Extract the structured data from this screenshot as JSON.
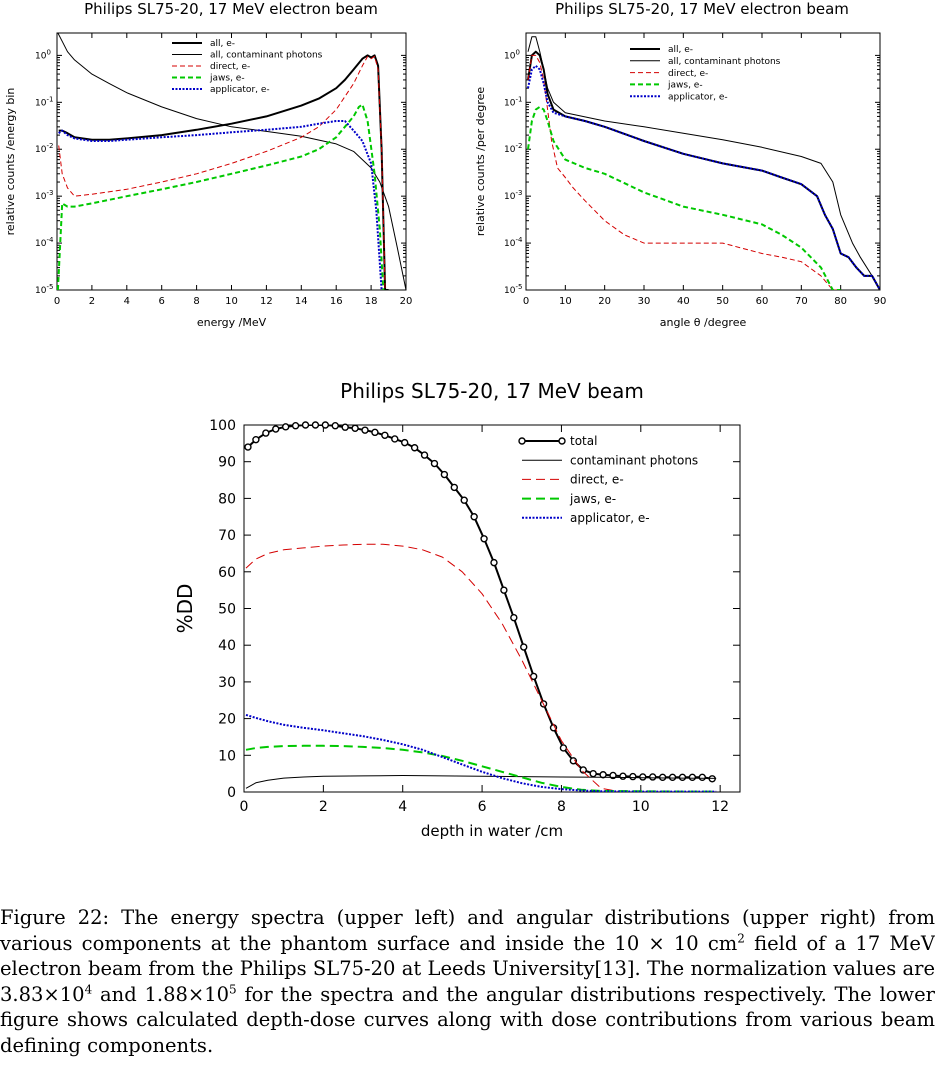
{
  "chart_data": [
    {
      "type": "line",
      "title": "Philips SL75-20, 17 MeV electron beam",
      "xlabel": "energy /MeV",
      "ylabel": "relative counts /energy bin",
      "xlim": [
        0,
        20
      ],
      "ylim": [
        1e-05,
        3
      ],
      "yscale": "log",
      "xticks": [
        "0",
        "2",
        "4",
        "6",
        "8",
        "10",
        "12",
        "14",
        "16",
        "18",
        "20"
      ],
      "yticks": [
        {
          "base": "10",
          "exp": "0",
          "value": 1
        },
        {
          "base": "10",
          "exp": "-1",
          "value": 0.1
        },
        {
          "base": "10",
          "exp": "-2",
          "value": 0.01
        },
        {
          "base": "10",
          "exp": "-3",
          "value": 0.001
        },
        {
          "base": "10",
          "exp": "-4",
          "value": 0.0001
        },
        {
          "base": "10",
          "exp": "-5",
          "value": 1e-05
        }
      ],
      "legend_position": "top-center",
      "series": [
        {
          "name": "all, e-",
          "color": "#000000",
          "style": "solid-thick",
          "x": [
            0.1,
            0.3,
            0.6,
            1,
            2,
            3,
            4,
            6,
            8,
            10,
            12,
            14,
            15,
            16,
            16.5,
            17,
            17.5,
            17.8,
            18,
            18.2,
            18.4,
            18.6,
            18.8,
            19
          ],
          "y": [
            0.025,
            0.025,
            0.022,
            0.018,
            0.016,
            0.016,
            0.017,
            0.02,
            0.026,
            0.035,
            0.05,
            0.085,
            0.12,
            0.2,
            0.3,
            0.5,
            0.85,
            1.0,
            0.9,
            1.0,
            0.6,
            0.01,
            1e-05,
            1e-05
          ]
        },
        {
          "name": "all, contaminant photons",
          "color": "#000000",
          "style": "solid-thin",
          "x": [
            0.05,
            0.3,
            0.6,
            1,
            2,
            3,
            4,
            6,
            8,
            10,
            12,
            14,
            16,
            17,
            18,
            18.5,
            19,
            19.5,
            20
          ],
          "y": [
            3,
            2,
            1.2,
            0.8,
            0.4,
            0.25,
            0.16,
            0.08,
            0.045,
            0.03,
            0.024,
            0.019,
            0.013,
            0.009,
            0.004,
            0.002,
            0.0006,
            8e-05,
            1e-05
          ]
        },
        {
          "name": "direct, e-",
          "color": "#d40000",
          "style": "dashed",
          "x": [
            0.1,
            0.3,
            0.6,
            1,
            2,
            4,
            6,
            8,
            10,
            12,
            14,
            15,
            16,
            17,
            17.5,
            17.8,
            18,
            18.2,
            18.4,
            18.6,
            18.8
          ],
          "y": [
            0.012,
            0.003,
            0.0015,
            0.001,
            0.0011,
            0.0014,
            0.002,
            0.003,
            0.005,
            0.009,
            0.018,
            0.03,
            0.07,
            0.25,
            0.6,
            0.95,
            0.85,
            0.95,
            0.5,
            0.01,
            1e-05
          ]
        },
        {
          "name": "jaws, e-",
          "color": "#00c800",
          "style": "dashed",
          "x": [
            0.05,
            0.3,
            0.6,
            1,
            2,
            4,
            6,
            8,
            10,
            12,
            14,
            15,
            16,
            16.5,
            17,
            17.3,
            17.5,
            17.8,
            18.2,
            18.5,
            18.7
          ],
          "y": [
            1e-05,
            0.0007,
            0.0006,
            0.0006,
            0.0007,
            0.001,
            0.0014,
            0.002,
            0.003,
            0.0045,
            0.007,
            0.01,
            0.018,
            0.03,
            0.05,
            0.08,
            0.09,
            0.04,
            0.003,
            0.0002,
            1e-05
          ]
        },
        {
          "name": "applicator, e-",
          "color": "#0000c8",
          "style": "dotted",
          "x": [
            0.1,
            0.3,
            0.6,
            1,
            2,
            3,
            4,
            6,
            8,
            10,
            12,
            14,
            15,
            16,
            16.5,
            17,
            17.5,
            18,
            18.3,
            18.6
          ],
          "y": [
            0.022,
            0.025,
            0.02,
            0.017,
            0.015,
            0.015,
            0.016,
            0.018,
            0.02,
            0.023,
            0.026,
            0.03,
            0.035,
            0.04,
            0.04,
            0.025,
            0.015,
            0.005,
            0.0005,
            1e-05
          ]
        }
      ]
    },
    {
      "type": "line",
      "title": "Philips SL75-20, 17 MeV electron beam",
      "xlabel": "angle θ /degree",
      "ylabel": "relative counts /per degree",
      "xlim": [
        0,
        90
      ],
      "ylim": [
        1e-05,
        3
      ],
      "yscale": "log",
      "xticks": [
        "0",
        "10",
        "20",
        "30",
        "40",
        "50",
        "60",
        "70",
        "80",
        "90"
      ],
      "yticks": [
        {
          "base": "10",
          "exp": "0",
          "value": 1
        },
        {
          "base": "10",
          "exp": "-1",
          "value": 0.1
        },
        {
          "base": "10",
          "exp": "-2",
          "value": 0.01
        },
        {
          "base": "10",
          "exp": "-3",
          "value": 0.001
        },
        {
          "base": "10",
          "exp": "-4",
          "value": 0.0001
        },
        {
          "base": "10",
          "exp": "-5",
          "value": 1e-05
        }
      ],
      "legend_position": "top-right",
      "series": [
        {
          "name": "all, e-",
          "color": "#000000",
          "style": "solid-thick",
          "x": [
            0.5,
            1.5,
            2.5,
            3.5,
            4.5,
            5.5,
            7,
            10,
            15,
            20,
            30,
            40,
            50,
            60,
            65,
            70,
            74,
            76,
            78,
            80,
            82,
            84,
            86,
            88,
            90
          ],
          "y": [
            0.3,
            1.0,
            1.2,
            1.0,
            0.5,
            0.15,
            0.07,
            0.05,
            0.04,
            0.03,
            0.015,
            0.008,
            0.005,
            0.0035,
            0.0025,
            0.0018,
            0.001,
            0.0004,
            0.0002,
            6e-05,
            5e-05,
            3e-05,
            2e-05,
            2e-05,
            1e-05
          ]
        },
        {
          "name": "all, contaminant photons",
          "color": "#000000",
          "style": "solid-thin",
          "x": [
            0.5,
            1.5,
            2.5,
            3.5,
            4.5,
            5.5,
            7,
            10,
            20,
            30,
            40,
            50,
            60,
            70,
            75,
            78,
            80,
            83,
            85,
            88,
            90
          ],
          "y": [
            1.2,
            2.5,
            2.5,
            1.2,
            0.5,
            0.2,
            0.1,
            0.06,
            0.04,
            0.03,
            0.022,
            0.016,
            0.011,
            0.007,
            0.005,
            0.002,
            0.0004,
            0.0001,
            5e-05,
            2e-05,
            1e-05
          ]
        },
        {
          "name": "direct, e-",
          "color": "#d40000",
          "style": "dashed",
          "x": [
            0.5,
            1.5,
            2.5,
            3.5,
            4.5,
            5.5,
            6.5,
            8,
            10,
            12,
            15,
            20,
            25,
            30,
            40,
            50,
            60,
            65,
            70,
            75,
            78,
            80
          ],
          "y": [
            0.3,
            1.0,
            1.0,
            0.7,
            0.3,
            0.07,
            0.015,
            0.004,
            0.0025,
            0.0015,
            0.0008,
            0.0003,
            0.00015,
            0.0001,
            0.0001,
            0.0001,
            6e-05,
            5e-05,
            4e-05,
            2e-05,
            1e-05,
            1e-05
          ]
        },
        {
          "name": "jaws, e-",
          "color": "#00c800",
          "style": "dashed",
          "x": [
            0.5,
            1.5,
            2.5,
            3.5,
            4.5,
            5.5,
            7,
            10,
            15,
            20,
            30,
            40,
            50,
            60,
            65,
            70,
            75,
            78,
            80
          ],
          "y": [
            0.01,
            0.04,
            0.07,
            0.08,
            0.07,
            0.04,
            0.015,
            0.006,
            0.004,
            0.003,
            0.0012,
            0.0006,
            0.0004,
            0.00025,
            0.00015,
            8e-05,
            3e-05,
            1e-05,
            1e-05
          ]
        },
        {
          "name": "applicator, e-",
          "color": "#0000c8",
          "style": "dotted",
          "x": [
            0.5,
            1.5,
            2.5,
            3.5,
            4.5,
            5.5,
            7,
            10,
            15,
            20,
            30,
            40,
            50,
            60,
            65,
            70,
            74,
            76,
            78,
            80,
            82,
            84,
            86,
            88,
            90
          ],
          "y": [
            0.2,
            0.5,
            0.6,
            0.5,
            0.25,
            0.1,
            0.06,
            0.05,
            0.04,
            0.03,
            0.015,
            0.008,
            0.005,
            0.0035,
            0.0025,
            0.0018,
            0.001,
            0.0004,
            0.0002,
            6e-05,
            5e-05,
            3e-05,
            2e-05,
            2e-05,
            1e-05
          ]
        }
      ]
    },
    {
      "type": "line",
      "title": "Philips SL75-20, 17 MeV beam",
      "xlabel": "depth in water /cm",
      "ylabel": "%DD",
      "xlim": [
        0,
        12.5
      ],
      "ylim": [
        0,
        100
      ],
      "xticks": [
        "0",
        "2",
        "4",
        "6",
        "8",
        "10",
        "12"
      ],
      "yticks": [
        "0",
        "10",
        "20",
        "30",
        "40",
        "50",
        "60",
        "70",
        "80",
        "90",
        "100"
      ],
      "legend_position": "top-right",
      "series": [
        {
          "name": "total",
          "color": "#000000",
          "style": "solid-markers",
          "x": [
            0.1,
            0.3,
            0.55,
            0.8,
            1.05,
            1.3,
            1.55,
            1.8,
            2.05,
            2.3,
            2.55,
            2.8,
            3.05,
            3.3,
            3.55,
            3.8,
            4.05,
            4.3,
            4.55,
            4.8,
            5.05,
            5.3,
            5.55,
            5.8,
            6.05,
            6.3,
            6.55,
            6.8,
            7.05,
            7.3,
            7.55,
            7.8,
            8.05,
            8.3,
            8.55,
            8.8,
            9.05,
            9.3,
            9.55,
            9.8,
            10.05,
            10.3,
            10.55,
            10.8,
            11.05,
            11.3,
            11.55,
            11.8
          ],
          "y": [
            94,
            96,
            97.8,
            98.9,
            99.5,
            99.8,
            100,
            100,
            100,
            99.8,
            99.4,
            99.1,
            98.6,
            98,
            97.2,
            96.2,
            95.2,
            93.8,
            91.8,
            89.5,
            86.5,
            83,
            79.5,
            75,
            69,
            62.5,
            55,
            47.5,
            39.5,
            31.5,
            24,
            17.5,
            12,
            8.5,
            6,
            5,
            4.7,
            4.5,
            4.3,
            4.2,
            4.1,
            4.1,
            4,
            4,
            4,
            4,
            4,
            3.6
          ]
        },
        {
          "name": "contaminant photons",
          "color": "#000000",
          "style": "solid-thin",
          "x": [
            0.05,
            0.3,
            0.6,
            1,
            1.5,
            2,
            3,
            4,
            5,
            6,
            7,
            8,
            9,
            10,
            11,
            11.9
          ],
          "y": [
            1,
            2.5,
            3.2,
            3.8,
            4.1,
            4.3,
            4.4,
            4.5,
            4.4,
            4.3,
            4.2,
            4.1,
            4,
            3.9,
            3.8,
            3.7
          ]
        },
        {
          "name": "direct, e-",
          "color": "#d40000",
          "style": "dashed",
          "x": [
            0.05,
            0.3,
            0.6,
            1,
            1.5,
            2,
            2.5,
            3,
            3.5,
            4,
            4.5,
            5,
            5.5,
            6,
            6.5,
            7,
            7.5,
            8,
            8.5,
            9,
            9.5
          ],
          "y": [
            61,
            63.5,
            65,
            66,
            66.5,
            67,
            67.3,
            67.5,
            67.5,
            67,
            66,
            64,
            60,
            54,
            46,
            36,
            25,
            14,
            6,
            1,
            0
          ]
        },
        {
          "name": "jaws, e-",
          "color": "#00c800",
          "style": "dashed",
          "x": [
            0.05,
            0.3,
            0.6,
            1,
            1.5,
            2,
            2.5,
            3,
            3.5,
            4,
            4.5,
            5,
            5.5,
            6,
            6.5,
            7,
            7.5,
            8,
            8.5,
            9,
            10,
            11,
            11.9
          ],
          "y": [
            11.5,
            12,
            12.3,
            12.5,
            12.6,
            12.6,
            12.5,
            12.3,
            12,
            11.5,
            10.8,
            9.8,
            8.5,
            7,
            5.5,
            4,
            2.5,
            1.4,
            0.6,
            0.3,
            0.2,
            0.1,
            0.1
          ]
        },
        {
          "name": "applicator, e-",
          "color": "#0000c8",
          "style": "dotted",
          "x": [
            0.05,
            0.3,
            0.6,
            1,
            1.5,
            2,
            2.5,
            3,
            3.5,
            4,
            4.5,
            5,
            5.5,
            6,
            6.5,
            7,
            7.5,
            8,
            8.5,
            9,
            10,
            11,
            11.9
          ],
          "y": [
            21,
            20.2,
            19.3,
            18.3,
            17.5,
            16.8,
            16,
            15.2,
            14.2,
            13,
            11.5,
            9.5,
            7.5,
            5.5,
            3.8,
            2.4,
            1.4,
            0.8,
            0.4,
            0.2,
            0.1,
            0.1,
            0.1
          ]
        }
      ]
    }
  ],
  "caption": {
    "text_1": "Figure 22: The energy spectra (upper left) and angular distributions (upper right) from various components at the phantom surface and inside the 10 × 10 cm",
    "sup_1": "2",
    "text_2": " field of a 17 MeV electron beam from the Philips SL75-20 at Leeds University[13]. The normalization values are 3.83×10",
    "sup_2": "4",
    "text_3": " and 1.88×10",
    "sup_3": "5",
    "text_4": " for the spectra and the angular distributions respectively. The lower figure shows calculated depth-dose curves along with dose contributions from various beam defining components."
  }
}
